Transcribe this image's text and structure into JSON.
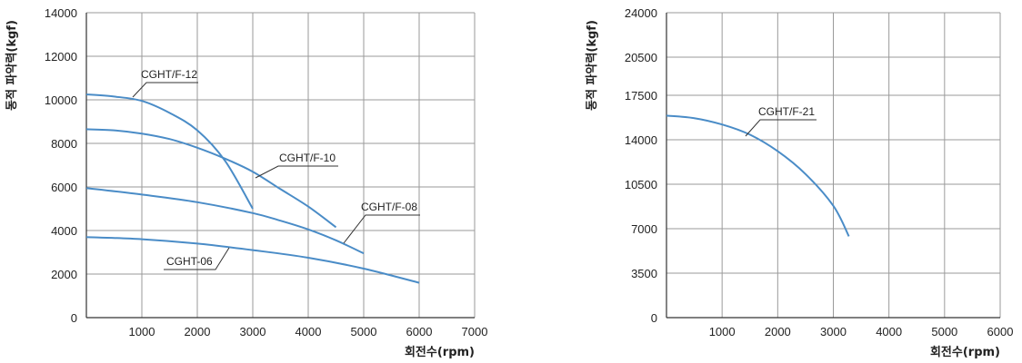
{
  "chart_data": [
    {
      "type": "line",
      "xlabel": "회전수(rpm)",
      "ylabel": "동적 파악력(kgf)",
      "xlim": [
        0,
        7000
      ],
      "ylim": [
        0,
        14000
      ],
      "xticks": [
        "1000",
        "2000",
        "3000",
        "4000",
        "5000",
        "6000",
        "7000"
      ],
      "yticks": [
        "0",
        "2000",
        "4000",
        "6000",
        "8000",
        "10000",
        "12000",
        "14000"
      ],
      "grid": true,
      "series": [
        {
          "name": "CGHT/F-12",
          "x": [
            0,
            500,
            1000,
            1500,
            2000,
            2500,
            3000
          ],
          "y": [
            10250,
            10150,
            9950,
            9400,
            8600,
            7200,
            5000
          ]
        },
        {
          "name": "CGHT/F-10",
          "x": [
            0,
            500,
            1000,
            1500,
            2000,
            2500,
            3000,
            3500,
            4000,
            4500
          ],
          "y": [
            8650,
            8600,
            8450,
            8200,
            7800,
            7300,
            6700,
            5900,
            5100,
            4150
          ]
        },
        {
          "name": "CGHT/F-08",
          "x": [
            0,
            1000,
            2000,
            3000,
            3500,
            4000,
            4500,
            5000
          ],
          "y": [
            5950,
            5650,
            5300,
            4800,
            4450,
            4050,
            3550,
            2950
          ]
        },
        {
          "name": "CGHT-06",
          "x": [
            0,
            1000,
            2000,
            3000,
            4000,
            5000,
            6000
          ],
          "y": [
            3700,
            3600,
            3400,
            3100,
            2750,
            2250,
            1600
          ]
        }
      ]
    },
    {
      "type": "line",
      "xlabel": "회전수(rpm)",
      "ylabel": "동적 파악력(kgf)",
      "xlim": [
        0,
        6000
      ],
      "ylim": [
        0,
        24000
      ],
      "xticks": [
        "1000",
        "2000",
        "3000",
        "4000",
        "5000",
        "6000"
      ],
      "yticks": [
        "0",
        "3500",
        "7000",
        "10500",
        "14000",
        "17500",
        "20500",
        "24000"
      ],
      "grid": true,
      "series": [
        {
          "name": "CGHT/F-21",
          "x": [
            0,
            500,
            1000,
            1500,
            2000,
            2500,
            3000,
            3280
          ],
          "y": [
            15900,
            15700,
            15200,
            14400,
            13100,
            11300,
            8800,
            6400
          ]
        }
      ]
    }
  ]
}
